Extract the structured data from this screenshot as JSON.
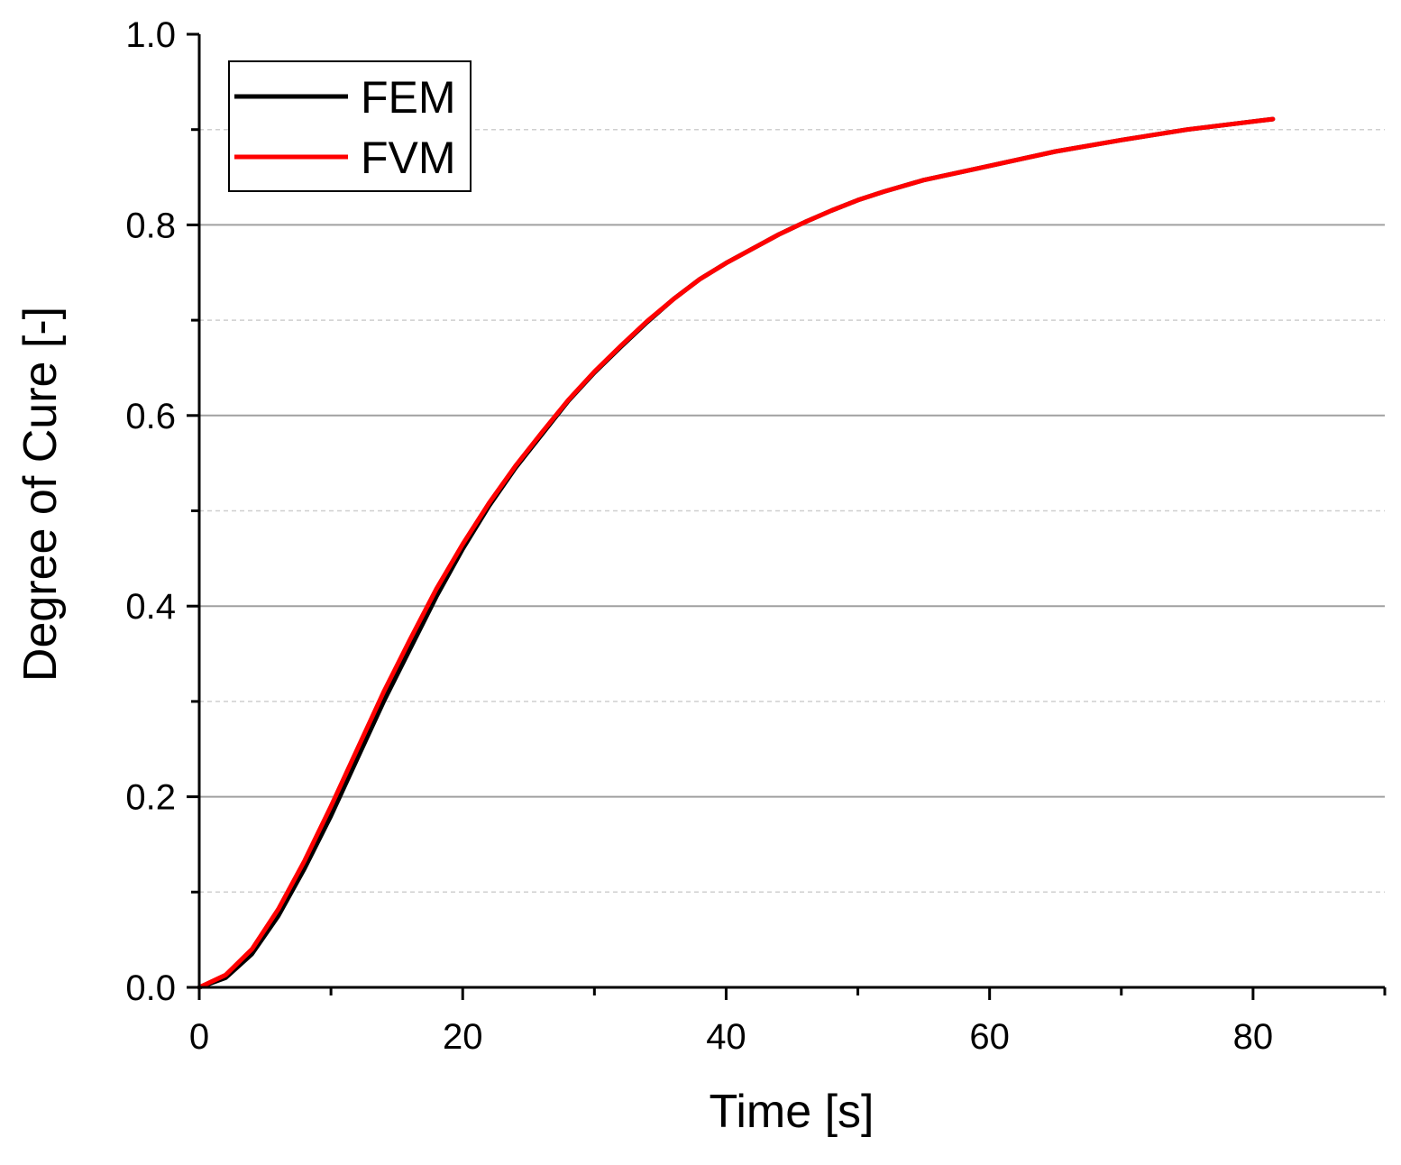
{
  "chart_data": {
    "type": "line",
    "xlabel": "Time [s]",
    "ylabel": "Degree of Cure [-]",
    "xlim": [
      0,
      90
    ],
    "ylim": [
      0,
      1.0
    ],
    "x_major_ticks": [
      0,
      20,
      40,
      60,
      80
    ],
    "x_tick_labels": [
      "0",
      "20",
      "40",
      "60",
      "80"
    ],
    "x_minor_ticks": [
      10,
      30,
      50,
      70,
      90
    ],
    "y_major_ticks": [
      0,
      0.2,
      0.4,
      0.6,
      0.8,
      1.0
    ],
    "y_tick_labels": [
      "0.0",
      "0.2",
      "0.4",
      "0.6",
      "0.8",
      "1.0"
    ],
    "y_minor_ticks": [
      0.1,
      0.3,
      0.5,
      0.7,
      0.9
    ],
    "grid": {
      "major": "solid gray horizontal",
      "minor": "dashed light gray horizontal"
    },
    "legend_position": "top-left",
    "colors": {
      "FEM": "#000000",
      "FVM": "#ff0000",
      "grid_major": "#a0a0a0",
      "grid_minor": "#cfcfcf"
    },
    "series": [
      {
        "name": "FEM",
        "x": [
          0,
          2,
          4,
          6,
          8,
          10,
          12,
          14,
          16,
          18,
          20,
          22,
          24,
          26,
          28,
          30,
          32,
          34,
          36,
          38,
          40,
          42,
          44,
          46,
          48,
          50,
          52,
          55,
          60,
          65,
          70,
          75,
          81.5
        ],
        "y": [
          0,
          0.01,
          0.035,
          0.075,
          0.125,
          0.18,
          0.24,
          0.3,
          0.355,
          0.41,
          0.46,
          0.505,
          0.545,
          0.58,
          0.615,
          0.645,
          0.672,
          0.698,
          0.722,
          0.743,
          0.76,
          0.775,
          0.79,
          0.803,
          0.815,
          0.826,
          0.835,
          0.847,
          0.862,
          0.877,
          0.889,
          0.9,
          0.911
        ]
      },
      {
        "name": "FVM",
        "x": [
          0,
          2,
          4,
          6,
          8,
          10,
          12,
          14,
          16,
          18,
          20,
          22,
          24,
          26,
          28,
          30,
          32,
          34,
          36,
          38,
          40,
          42,
          44,
          46,
          48,
          50,
          52,
          55,
          60,
          65,
          70,
          75,
          81.5
        ],
        "y": [
          0,
          0.013,
          0.04,
          0.082,
          0.133,
          0.19,
          0.25,
          0.31,
          0.365,
          0.418,
          0.465,
          0.508,
          0.547,
          0.582,
          0.616,
          0.646,
          0.673,
          0.699,
          0.722,
          0.743,
          0.76,
          0.775,
          0.79,
          0.803,
          0.815,
          0.826,
          0.835,
          0.847,
          0.862,
          0.877,
          0.889,
          0.9,
          0.911
        ]
      }
    ]
  }
}
